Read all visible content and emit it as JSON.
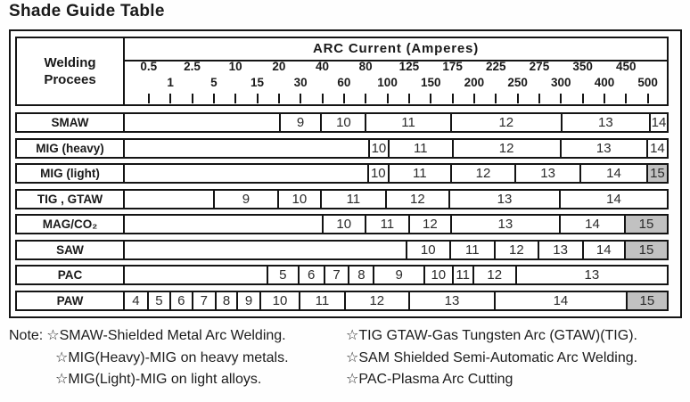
{
  "title": "Shade Guide Table",
  "colors": {
    "border": "#141414",
    "shaded_cell": "#c1c1c1",
    "text": "#1a1a1a",
    "background": "#ffffff"
  },
  "table": {
    "process_header": "Welding Procees",
    "arc_header": "ARC Current (Amperes)",
    "ticks": [
      {
        "label": "0.5",
        "pos": 4.41,
        "row": "top"
      },
      {
        "label": "1",
        "pos": 8.42,
        "row": "bot"
      },
      {
        "label": "2.5",
        "pos": 12.42,
        "row": "top"
      },
      {
        "label": "5",
        "pos": 16.42,
        "row": "bot"
      },
      {
        "label": "10",
        "pos": 20.42,
        "row": "top"
      },
      {
        "label": "15",
        "pos": 24.43,
        "row": "bot"
      },
      {
        "label": "20",
        "pos": 28.43,
        "row": "top"
      },
      {
        "label": "30",
        "pos": 32.43,
        "row": "bot"
      },
      {
        "label": "40",
        "pos": 36.44,
        "row": "top"
      },
      {
        "label": "60",
        "pos": 40.44,
        "row": "bot"
      },
      {
        "label": "80",
        "pos": 44.44,
        "row": "top"
      },
      {
        "label": "100",
        "pos": 48.45,
        "row": "bot"
      },
      {
        "label": "125",
        "pos": 52.45,
        "row": "top"
      },
      {
        "label": "150",
        "pos": 56.45,
        "row": "bot"
      },
      {
        "label": "175",
        "pos": 60.46,
        "row": "top"
      },
      {
        "label": "200",
        "pos": 64.46,
        "row": "bot"
      },
      {
        "label": "225",
        "pos": 68.46,
        "row": "top"
      },
      {
        "label": "250",
        "pos": 72.47,
        "row": "bot"
      },
      {
        "label": "275",
        "pos": 76.47,
        "row": "top"
      },
      {
        "label": "300",
        "pos": 80.47,
        "row": "bot"
      },
      {
        "label": "350",
        "pos": 84.48,
        "row": "top"
      },
      {
        "label": "400",
        "pos": 88.48,
        "row": "bot"
      },
      {
        "label": "450",
        "pos": 92.48,
        "row": "top"
      },
      {
        "label": "500",
        "pos": 96.49,
        "row": "bot"
      }
    ],
    "rows": [
      {
        "label": "SMAW",
        "segments": [
          {
            "v": "9",
            "s": 28.4,
            "e": 36.1
          },
          {
            "v": "10",
            "s": 36.1,
            "e": 44.3
          },
          {
            "v": "11",
            "s": 44.3,
            "e": 60.0
          },
          {
            "v": "12",
            "s": 60.0,
            "e": 80.4
          },
          {
            "v": "13",
            "s": 80.4,
            "e": 96.7
          },
          {
            "v": "14",
            "s": 96.7,
            "e": 100
          }
        ]
      },
      {
        "label": "MIG (heavy)",
        "segments": [
          {
            "v": "10",
            "s": 44.9,
            "e": 48.5
          },
          {
            "v": "11",
            "s": 48.5,
            "e": 60.3
          },
          {
            "v": "12",
            "s": 60.3,
            "e": 80.2
          },
          {
            "v": "13",
            "s": 80.2,
            "e": 96.2
          },
          {
            "v": "14",
            "s": 96.2,
            "e": 100
          }
        ]
      },
      {
        "label": "MIG (light)",
        "segments": [
          {
            "v": "10",
            "s": 44.7,
            "e": 48.5
          },
          {
            "v": "11",
            "s": 48.5,
            "e": 60.0
          },
          {
            "v": "12",
            "s": 60.0,
            "e": 71.9
          },
          {
            "v": "13",
            "s": 71.9,
            "e": 83.9
          },
          {
            "v": "14",
            "s": 83.9,
            "e": 96.2
          },
          {
            "v": "15",
            "s": 96.2,
            "e": 100,
            "shaded": true
          }
        ]
      },
      {
        "label": "TIG , GTAW",
        "segments": [
          {
            "v": "9",
            "s": 16.3,
            "e": 28.1
          },
          {
            "v": "10",
            "s": 28.1,
            "e": 36.0
          },
          {
            "v": "11",
            "s": 36.0,
            "e": 48.0
          },
          {
            "v": "12",
            "s": 48.0,
            "e": 59.7
          },
          {
            "v": "13",
            "s": 59.7,
            "e": 80.1
          },
          {
            "v": "14",
            "s": 80.1,
            "e": 100
          }
        ]
      },
      {
        "label": "MAG/CO₂",
        "segments": [
          {
            "v": "10",
            "s": 36.3,
            "e": 44.2
          },
          {
            "v": "11",
            "s": 44.2,
            "e": 52.3
          },
          {
            "v": "12",
            "s": 52.3,
            "e": 60.0
          },
          {
            "v": "13",
            "s": 60.0,
            "e": 80.1
          },
          {
            "v": "14",
            "s": 80.1,
            "e": 92.1
          },
          {
            "v": "15",
            "s": 92.1,
            "e": 100,
            "shaded": true
          }
        ]
      },
      {
        "label": "SAW",
        "segments": [
          {
            "v": "10",
            "s": 51.8,
            "e": 59.8
          },
          {
            "v": "11",
            "s": 59.8,
            "e": 68.1
          },
          {
            "v": "12",
            "s": 68.1,
            "e": 76.1
          },
          {
            "v": "13",
            "s": 76.1,
            "e": 84.3
          },
          {
            "v": "14",
            "s": 84.3,
            "e": 92.1
          },
          {
            "v": "15",
            "s": 92.1,
            "e": 100,
            "shaded": true
          }
        ]
      },
      {
        "label": "PAC",
        "segments": [
          {
            "v": "5",
            "s": 26.1,
            "e": 31.9
          },
          {
            "v": "6",
            "s": 31.9,
            "e": 36.6
          },
          {
            "v": "7",
            "s": 36.6,
            "e": 41.2
          },
          {
            "v": "8",
            "s": 41.2,
            "e": 45.8
          },
          {
            "v": "9",
            "s": 45.8,
            "e": 55.1
          },
          {
            "v": "10",
            "s": 55.1,
            "e": 60.3
          },
          {
            "v": "11",
            "s": 60.3,
            "e": 64.1
          },
          {
            "v": "12",
            "s": 64.1,
            "e": 72.0
          },
          {
            "v": "13",
            "s": 72.0,
            "e": 100
          }
        ]
      },
      {
        "label": "PAW",
        "segments": [
          {
            "v": "4",
            "s": 0,
            "e": 4.1
          },
          {
            "v": "5",
            "s": 4.1,
            "e": 8.2
          },
          {
            "v": "6",
            "s": 8.2,
            "e": 12.3
          },
          {
            "v": "7",
            "s": 12.3,
            "e": 16.6
          },
          {
            "v": "8",
            "s": 16.6,
            "e": 20.6
          },
          {
            "v": "9",
            "s": 20.6,
            "e": 24.8
          },
          {
            "v": "10",
            "s": 24.8,
            "e": 32.1
          },
          {
            "v": "11",
            "s": 32.1,
            "e": 40.4
          },
          {
            "v": "12",
            "s": 40.4,
            "e": 52.3
          },
          {
            "v": "13",
            "s": 52.3,
            "e": 68.1
          },
          {
            "v": "14",
            "s": 68.1,
            "e": 92.4
          },
          {
            "v": "15",
            "s": 92.4,
            "e": 100,
            "shaded": true
          }
        ]
      }
    ]
  },
  "note": {
    "prefix": "Note:",
    "left": [
      "☆SMAW-Shielded Metal Arc Welding.",
      "☆MIG(Heavy)-MIG on heavy metals.",
      "☆MIG(Light)-MIG on light alloys."
    ],
    "right": [
      "☆TIG GTAW-Gas Tungsten Arc (GTAW)(TIG).",
      "☆SAM Shielded Semi-Automatic Arc Welding.",
      "☆PAC-Plasma Arc Cutting"
    ]
  }
}
